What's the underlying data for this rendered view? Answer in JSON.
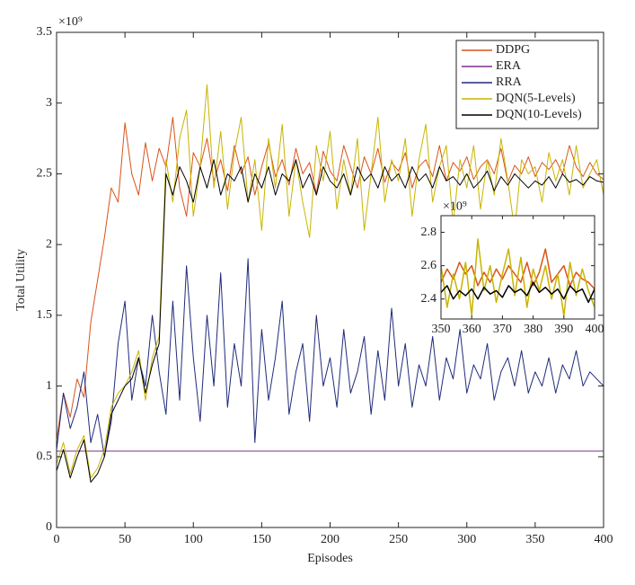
{
  "chart_data": [
    {
      "type": "line",
      "x_label": "Episodes",
      "y_label": "Total Utility",
      "y_exponent": "×10⁹",
      "x": [
        0,
        5,
        10,
        15,
        20,
        25,
        30,
        35,
        40,
        45,
        50,
        55,
        60,
        65,
        70,
        75,
        80,
        85,
        90,
        95,
        100,
        105,
        110,
        115,
        120,
        125,
        130,
        135,
        140,
        145,
        150,
        155,
        160,
        165,
        170,
        175,
        180,
        185,
        190,
        195,
        200,
        205,
        210,
        215,
        220,
        225,
        230,
        235,
        240,
        245,
        250,
        255,
        260,
        265,
        270,
        275,
        280,
        285,
        290,
        295,
        300,
        305,
        310,
        315,
        320,
        325,
        330,
        335,
        340,
        345,
        350,
        355,
        360,
        365,
        370,
        375,
        380,
        385,
        390,
        395,
        400
      ],
      "xlim": [
        0,
        400
      ],
      "xticks": [
        0,
        50,
        100,
        150,
        200,
        250,
        300,
        350,
        400
      ],
      "ylim": [
        0,
        3.5
      ],
      "yticks": [
        0,
        0.5,
        1,
        1.5,
        2,
        2.5,
        3,
        3.5
      ],
      "grid": false,
      "legend": "upper right",
      "series": [
        {
          "name": "DDPG",
          "color": "#d95319",
          "values": [
            0.62,
            0.95,
            0.78,
            1.05,
            0.92,
            1.45,
            1.75,
            2.05,
            2.4,
            2.3,
            2.86,
            2.5,
            2.35,
            2.72,
            2.45,
            2.68,
            2.55,
            2.9,
            2.4,
            2.2,
            2.65,
            2.55,
            2.75,
            2.45,
            2.6,
            2.38,
            2.7,
            2.5,
            2.62,
            2.35,
            2.55,
            2.72,
            2.48,
            2.6,
            2.42,
            2.68,
            2.5,
            2.58,
            2.36,
            2.66,
            2.52,
            2.45,
            2.7,
            2.55,
            2.4,
            2.62,
            2.5,
            2.68,
            2.44,
            2.58,
            2.52,
            2.65,
            2.4,
            2.55,
            2.6,
            2.48,
            2.7,
            2.45,
            2.58,
            2.52,
            2.62,
            2.46,
            2.55,
            2.6,
            2.5,
            2.68,
            2.44,
            2.56,
            2.5,
            2.62,
            2.48,
            2.58,
            2.53,
            2.6,
            2.5,
            2.7,
            2.55,
            2.48,
            2.58,
            2.5,
            2.46
          ]
        },
        {
          "name": "ERA",
          "color": "#7e2f8e",
          "values": [
            0.54,
            0.54,
            0.54,
            0.54,
            0.54,
            0.54,
            0.54,
            0.54,
            0.54,
            0.54,
            0.54,
            0.54,
            0.54,
            0.54,
            0.54,
            0.54,
            0.54,
            0.54,
            0.54,
            0.54,
            0.54,
            0.54,
            0.54,
            0.54,
            0.54,
            0.54,
            0.54,
            0.54,
            0.54,
            0.54,
            0.54,
            0.54,
            0.54,
            0.54,
            0.54,
            0.54,
            0.54,
            0.54,
            0.54,
            0.54,
            0.54,
            0.54,
            0.54,
            0.54,
            0.54,
            0.54,
            0.54,
            0.54,
            0.54,
            0.54,
            0.54,
            0.54,
            0.54,
            0.54,
            0.54,
            0.54,
            0.54,
            0.54,
            0.54,
            0.54,
            0.54,
            0.54,
            0.54,
            0.54,
            0.54,
            0.54,
            0.54,
            0.54,
            0.54,
            0.54,
            0.54,
            0.54,
            0.54,
            0.54,
            0.54,
            0.54,
            0.54,
            0.54,
            0.54,
            0.54,
            0.54
          ]
        },
        {
          "name": "RRA",
          "color": "#1f2a7a",
          "values": [
            0.55,
            0.95,
            0.7,
            0.85,
            1.1,
            0.6,
            0.8,
            0.5,
            0.75,
            1.3,
            1.6,
            0.9,
            1.2,
            1.0,
            1.5,
            1.1,
            0.8,
            1.6,
            0.9,
            1.85,
            1.2,
            0.75,
            1.5,
            1.0,
            1.8,
            0.85,
            1.3,
            1.0,
            1.9,
            0.6,
            1.4,
            0.9,
            1.2,
            1.6,
            0.8,
            1.1,
            1.3,
            0.75,
            1.5,
            1.0,
            1.2,
            0.85,
            1.4,
            0.95,
            1.1,
            1.35,
            0.8,
            1.25,
            0.9,
            1.55,
            1.0,
            1.3,
            0.85,
            1.15,
            1.0,
            1.35,
            0.9,
            1.2,
            1.05,
            1.4,
            0.95,
            1.15,
            1.05,
            1.3,
            0.9,
            1.1,
            1.2,
            1.0,
            1.25,
            0.95,
            1.1,
            1.0,
            1.2,
            0.95,
            1.15,
            1.05,
            1.25,
            1.0,
            1.1,
            1.05,
            1.0
          ]
        },
        {
          "name": "DQN(5-Levels)",
          "color": "#c8b400",
          "values": [
            0.45,
            0.6,
            0.38,
            0.55,
            0.65,
            0.35,
            0.42,
            0.55,
            0.85,
            0.95,
            1.0,
            1.1,
            1.25,
            0.9,
            1.2,
            1.35,
            2.6,
            2.3,
            2.75,
            2.95,
            2.2,
            2.55,
            3.13,
            2.4,
            2.8,
            2.25,
            2.65,
            2.9,
            2.3,
            2.6,
            2.1,
            2.75,
            2.4,
            2.85,
            2.2,
            2.6,
            2.3,
            2.05,
            2.7,
            2.45,
            2.8,
            2.25,
            2.6,
            2.35,
            2.75,
            2.1,
            2.5,
            2.9,
            2.3,
            2.6,
            2.45,
            2.75,
            2.2,
            2.6,
            2.85,
            2.3,
            2.55,
            2.7,
            2.15,
            2.6,
            2.4,
            2.7,
            2.25,
            2.6,
            2.35,
            2.75,
            2.45,
            2.1,
            2.6,
            2.5,
            2.55,
            2.3,
            2.65,
            2.45,
            2.6,
            2.35,
            2.7,
            2.4,
            2.5,
            2.6,
            2.35
          ]
        },
        {
          "name": "DQN(10-Levels)",
          "color": "#000000",
          "values": [
            0.4,
            0.55,
            0.35,
            0.5,
            0.62,
            0.32,
            0.38,
            0.5,
            0.8,
            0.9,
            1.0,
            1.05,
            1.2,
            0.95,
            1.15,
            1.3,
            2.5,
            2.35,
            2.55,
            2.45,
            2.3,
            2.55,
            2.4,
            2.6,
            2.35,
            2.5,
            2.45,
            2.55,
            2.3,
            2.5,
            2.4,
            2.55,
            2.35,
            2.5,
            2.45,
            2.6,
            2.4,
            2.5,
            2.35,
            2.55,
            2.45,
            2.4,
            2.5,
            2.35,
            2.55,
            2.45,
            2.5,
            2.4,
            2.55,
            2.45,
            2.5,
            2.4,
            2.55,
            2.45,
            2.5,
            2.4,
            2.55,
            2.45,
            2.48,
            2.42,
            2.5,
            2.4,
            2.45,
            2.52,
            2.38,
            2.48,
            2.42,
            2.5,
            2.45,
            2.4,
            2.45,
            2.42,
            2.48,
            2.4,
            2.5,
            2.44,
            2.46,
            2.42,
            2.48,
            2.45,
            2.44
          ]
        }
      ]
    },
    {
      "type": "line",
      "y_exponent": "×10⁹",
      "x": [
        350,
        352,
        354,
        356,
        358,
        360,
        362,
        364,
        366,
        368,
        370,
        372,
        374,
        376,
        378,
        380,
        382,
        384,
        386,
        388,
        390,
        392,
        394,
        396,
        398,
        400
      ],
      "xlim": [
        350,
        400
      ],
      "xticks": [
        350,
        360,
        370,
        380,
        390,
        400
      ],
      "ylim": [
        2.28,
        2.9
      ],
      "yticks": [
        2.4,
        2.6,
        2.8
      ],
      "grid": false,
      "series": [
        {
          "color": "#d95319",
          "values": [
            2.5,
            2.58,
            2.52,
            2.62,
            2.55,
            2.6,
            2.48,
            2.56,
            2.5,
            2.58,
            2.52,
            2.6,
            2.55,
            2.5,
            2.62,
            2.48,
            2.56,
            2.7,
            2.5,
            2.55,
            2.6,
            2.48,
            2.56,
            2.52,
            2.5,
            2.46
          ]
        },
        {
          "color": "#c8b400",
          "values": [
            2.6,
            2.35,
            2.55,
            2.4,
            2.62,
            2.3,
            2.76,
            2.45,
            2.6,
            2.38,
            2.55,
            2.7,
            2.42,
            2.65,
            2.35,
            2.58,
            2.45,
            2.6,
            2.4,
            2.55,
            2.3,
            2.62,
            2.42,
            2.58,
            2.45,
            2.35
          ]
        },
        {
          "color": "#000000",
          "values": [
            2.44,
            2.48,
            2.4,
            2.45,
            2.42,
            2.46,
            2.4,
            2.47,
            2.43,
            2.45,
            2.41,
            2.48,
            2.44,
            2.46,
            2.42,
            2.5,
            2.44,
            2.47,
            2.43,
            2.46,
            2.4,
            2.48,
            2.44,
            2.46,
            2.38,
            2.46
          ]
        }
      ]
    }
  ]
}
